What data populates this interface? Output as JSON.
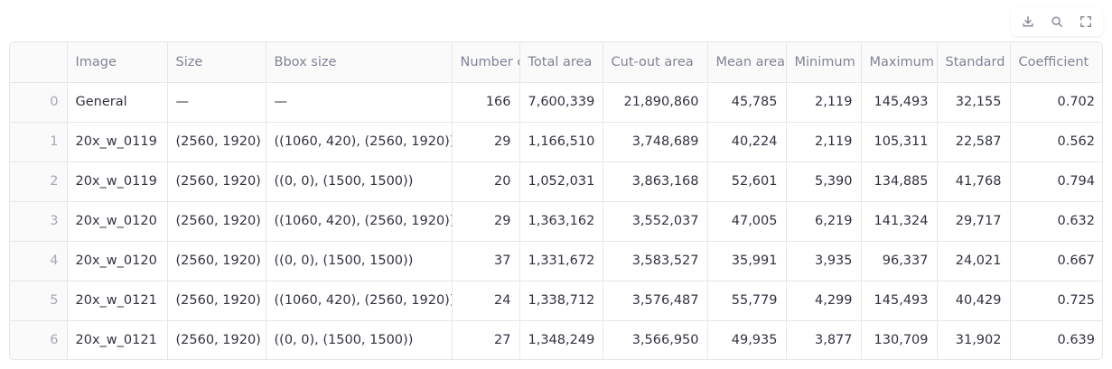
{
  "toolbar": {
    "download_icon": "download-icon",
    "search_icon": "search-icon",
    "fullscreen_icon": "fullscreen-icon"
  },
  "table": {
    "columns": [
      "",
      "Image",
      "Size",
      "Bbox size",
      "Number of cells",
      "Total area",
      "Cut-out area",
      "Mean area",
      "Minimum",
      "Maximum",
      "Standard",
      "Coefficient"
    ],
    "rows": [
      [
        "0",
        "General",
        "—",
        "—",
        "166",
        "7,600,339",
        "21,890,860",
        "45,785",
        "2,119",
        "145,493",
        "32,155",
        "0.702"
      ],
      [
        "1",
        "20x_w_0119",
        "(2560, 1920)",
        "((1060, 420), (2560, 1920))",
        "29",
        "1,166,510",
        "3,748,689",
        "40,224",
        "2,119",
        "105,311",
        "22,587",
        "0.562"
      ],
      [
        "2",
        "20x_w_0119",
        "(2560, 1920)",
        "((0, 0), (1500, 1500))",
        "20",
        "1,052,031",
        "3,863,168",
        "52,601",
        "5,390",
        "134,885",
        "41,768",
        "0.794"
      ],
      [
        "3",
        "20x_w_0120",
        "(2560, 1920)",
        "((1060, 420), (2560, 1920))",
        "29",
        "1,363,162",
        "3,552,037",
        "47,005",
        "6,219",
        "141,324",
        "29,717",
        "0.632"
      ],
      [
        "4",
        "20x_w_0120",
        "(2560, 1920)",
        "((0, 0), (1500, 1500))",
        "37",
        "1,331,672",
        "3,583,527",
        "35,991",
        "3,935",
        "96,337",
        "24,021",
        "0.667"
      ],
      [
        "5",
        "20x_w_0121",
        "(2560, 1920)",
        "((1060, 420), (2560, 1920))",
        "24",
        "1,338,712",
        "3,576,487",
        "55,779",
        "4,299",
        "145,493",
        "40,429",
        "0.725"
      ],
      [
        "6",
        "20x_w_0121",
        "(2560, 1920)",
        "((0, 0), (1500, 1500))",
        "27",
        "1,348,249",
        "3,566,950",
        "49,935",
        "3,877",
        "130,709",
        "31,902",
        "0.639"
      ]
    ]
  }
}
